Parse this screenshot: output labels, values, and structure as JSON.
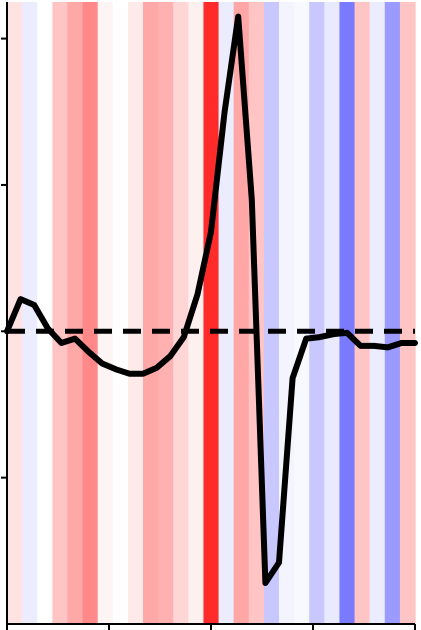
{
  "chart_data": {
    "type": "line",
    "title": "",
    "xlabel": "",
    "ylabel": "",
    "xlim": [
      0,
      30
    ],
    "ylim": [
      -2,
      2.25
    ],
    "xticks": [
      0,
      7.5,
      15,
      22.5,
      30
    ],
    "yticks": [
      -1,
      0,
      1,
      2
    ],
    "tick_labels_shown": false,
    "grid": false,
    "legend": "none",
    "baseline": {
      "y": 0,
      "style": "dashed",
      "color": "#000000"
    },
    "background_heatmap": {
      "description_color_scale": "bwr",
      "values": [
        0.2,
        -0.1,
        0,
        0.3,
        0.45,
        0.55,
        0.05,
        0,
        0.1,
        0.4,
        0.35,
        0.2,
        0.1,
        0.9,
        -0.1,
        0.4,
        0.25,
        -0.25,
        -0.05,
        0,
        -0.3,
        -0.15,
        -0.6,
        0.25,
        -0.1,
        -0.5,
        0.3
      ],
      "colors": [
        "#ffe2e2",
        "#ececff",
        "#ffffff",
        "#ffc4c4",
        "#ffa8a8",
        "#ff8888",
        "#fff4f4",
        "#ffffff",
        "#ffeaea",
        "#ffa8a8",
        "#ffb0b0",
        "#ffd6d6",
        "#fff0f0",
        "#ff2a2a",
        "#ececff",
        "#ffa6a6",
        "#ffc4c4",
        "#c8c8ff",
        "#f4f4ff",
        "#f8f8ff",
        "#c8c8ff",
        "#eaeaff",
        "#7a7aff",
        "#ffc4c4",
        "#ececff",
        "#9a9aff",
        "#ffc4c4"
      ]
    },
    "series": [
      {
        "color": "#000000",
        "x": [
          0,
          1,
          2,
          3,
          4,
          5,
          6,
          7,
          8,
          9,
          10,
          11,
          12,
          13,
          14,
          15,
          16,
          17,
          18,
          19,
          20,
          21,
          22,
          23,
          24,
          25,
          26,
          27,
          28,
          29,
          30
        ],
        "y": [
          0,
          0.22,
          0.18,
          0.02,
          -0.08,
          -0.05,
          -0.14,
          -0.22,
          -0.26,
          -0.29,
          -0.29,
          -0.25,
          -0.17,
          -0.04,
          0.25,
          0.68,
          1.5,
          2.15,
          0.9,
          -1.72,
          -1.58,
          -0.32,
          -0.05,
          -0.04,
          -0.02,
          -0.01,
          -0.1,
          -0.1,
          -0.11,
          -0.08,
          -0.08
        ]
      }
    ]
  }
}
